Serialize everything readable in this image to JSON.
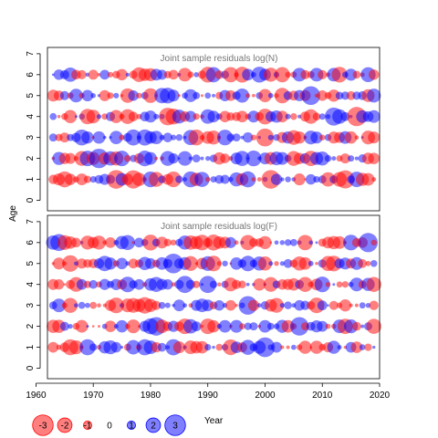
{
  "chart_data": {
    "type": "scatter",
    "ylabel": "Age",
    "xlabel": "Year",
    "xlim": [
      1962,
      2020
    ],
    "xticks": [
      1960,
      1970,
      1980,
      1990,
      2000,
      2010,
      2020
    ],
    "ylim": [
      -0.5,
      7.3
    ],
    "yticks": [
      0,
      1,
      2,
      3,
      4,
      5,
      6,
      7
    ],
    "grid": false,
    "colors": {
      "positive": "#0000FF",
      "negative": "#FF0000"
    },
    "panels": [
      {
        "title": "Joint sample residuals log(N)",
        "years": [
          1963,
          2019
        ],
        "ages": [
          1,
          2,
          3,
          4,
          5,
          6
        ],
        "seed": 17
      },
      {
        "title": "Joint sample residuals log(F)",
        "years": [
          1963,
          2019
        ],
        "ages": [
          1,
          2,
          3,
          4,
          5,
          6
        ],
        "seed": 53
      }
    ],
    "legend": {
      "placement": "bottom-left",
      "values": [
        -3,
        -2,
        -1,
        0,
        1,
        2,
        3
      ],
      "labels": [
        "-3",
        "-2",
        "-1",
        "0",
        "1",
        "2",
        "3"
      ]
    }
  }
}
